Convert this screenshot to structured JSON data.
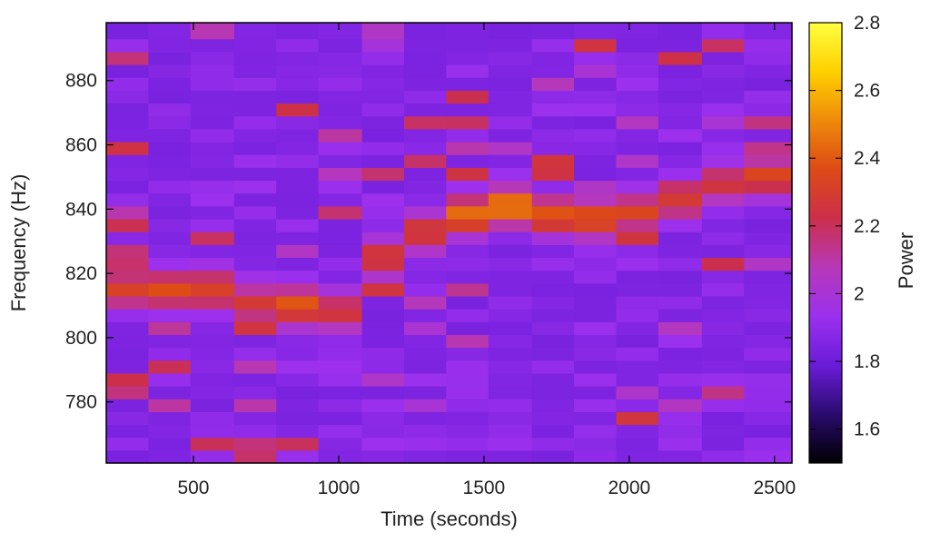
{
  "chart_data": {
    "type": "heatmap",
    "title": "",
    "xlabel": "Time (seconds)",
    "ylabel": "Frequency (Hz)",
    "colorbar_label": "Power",
    "xlim": [
      200,
      2560
    ],
    "ylim": [
      761,
      898
    ],
    "xticks": [
      500,
      1000,
      1500,
      2000,
      2500
    ],
    "yticks": [
      780,
      800,
      820,
      840,
      860,
      880
    ],
    "colorbar_range": [
      1.5,
      2.8
    ],
    "colorbar_ticks": [
      1.6,
      1.8,
      2,
      2.2,
      2.4,
      2.6,
      2.8
    ],
    "colormap": [
      "#000000",
      "#2a0b6e",
      "#6a1cd8",
      "#9b30ee",
      "#b738b8",
      "#cc2f4a",
      "#dd4a16",
      "#ee8a0a",
      "#ffd000",
      "#ffff40"
    ],
    "time_bins": [
      200,
      345,
      490,
      640,
      785,
      930,
      1080,
      1225,
      1370,
      1515,
      1665,
      1810,
      1955,
      2100,
      2250,
      2395,
      2560
    ],
    "freq_bins": [
      761,
      765,
      769,
      773,
      777,
      781,
      785,
      789,
      793,
      797,
      801,
      805,
      809,
      813,
      817,
      821,
      825,
      829,
      833,
      837,
      841,
      845,
      849,
      853,
      857,
      861,
      865,
      869,
      873,
      877,
      881,
      885,
      889,
      893,
      898
    ],
    "background_power": 1.86,
    "ridge": {
      "center_hz": [
        815,
        815,
        815,
        811,
        810,
        808,
        825,
        833,
        838,
        841,
        838,
        837,
        839,
        843,
        848,
        850
      ],
      "power": [
        2.32,
        2.36,
        2.34,
        2.28,
        2.4,
        2.26,
        2.28,
        2.32,
        2.44,
        2.52,
        2.42,
        2.4,
        2.32,
        2.28,
        2.26,
        2.34
      ]
    }
  }
}
